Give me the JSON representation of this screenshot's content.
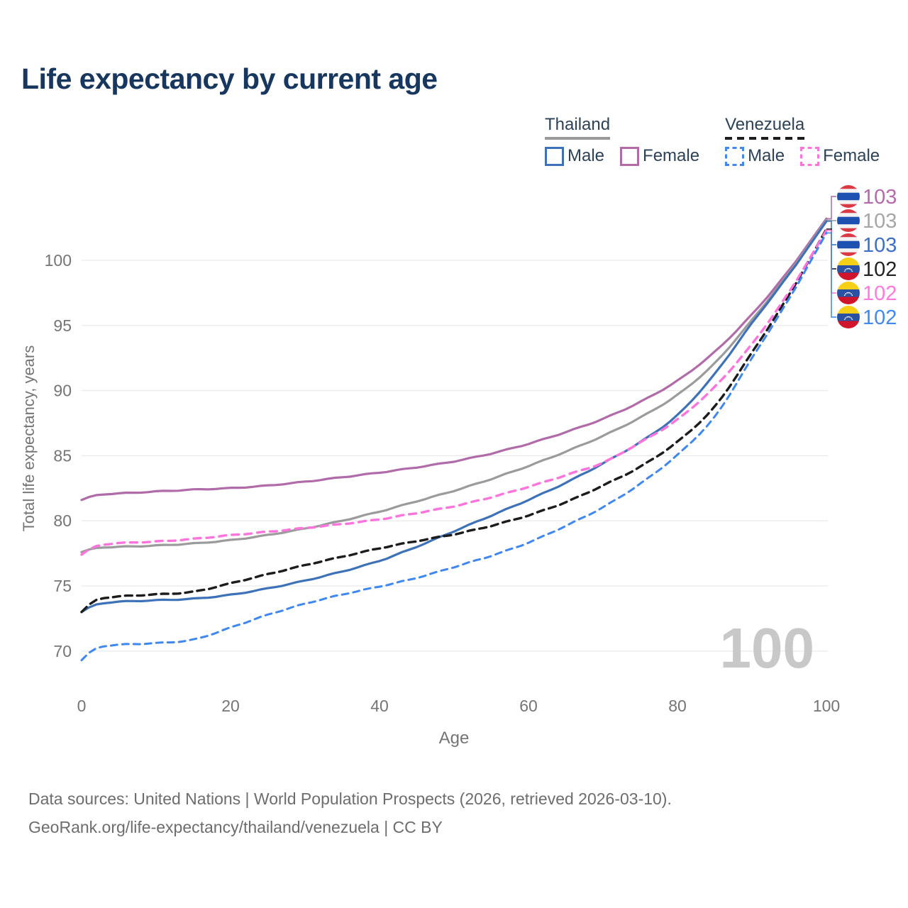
{
  "title": "Life expectancy by current age",
  "legend": {
    "groups": [
      {
        "name": "Thailand",
        "underline_style": "solid",
        "underline_color": "#9a9a9a",
        "items": [
          {
            "label": "Male",
            "color": "#3e72b8",
            "dashed": false
          },
          {
            "label": "Female",
            "color": "#b06ba8",
            "dashed": false
          }
        ]
      },
      {
        "name": "Venezuela",
        "underline_style": "dashed",
        "underline_color": "#1d1d1d",
        "items": [
          {
            "label": "Male",
            "color": "#3f87f2",
            "dashed": true
          },
          {
            "label": "Female",
            "color": "#ff74dc",
            "dashed": true
          }
        ]
      }
    ]
  },
  "watermark": "100",
  "footer": {
    "line1": "Data sources: United Nations | World Population Prospects (2026, retrieved 2026-03-10).",
    "line2": "GeoRank.org/life-expectancy/thailand/venezuela | CC BY"
  },
  "chart_data": {
    "type": "line",
    "title": "Life expectancy by current age",
    "xlabel": "Age",
    "ylabel": "Total life expectancy, years",
    "x_ticks": [
      0,
      20,
      40,
      60,
      80,
      100
    ],
    "y_ticks": [
      70,
      75,
      80,
      85,
      90,
      95,
      100
    ],
    "xlim": [
      0,
      100
    ],
    "ylim": [
      68.5,
      104
    ],
    "grid": "horizontal",
    "axis_color": "#757575",
    "grid_color": "#e9e9e9",
    "watermark_color": "#c8c8c8",
    "ages": [
      0,
      1,
      5,
      10,
      15,
      20,
      25,
      30,
      35,
      40,
      45,
      50,
      55,
      60,
      65,
      70,
      75,
      80,
      85,
      90,
      95,
      100
    ],
    "flag_colors": {
      "thailand": {
        "red": "#da3a44",
        "white": "#f2f2f2",
        "blue": "#1d50b0"
      },
      "venezuela": {
        "yellow": "#f6cf17",
        "blue": "#2b51a3",
        "red": "#cf142b",
        "star": "#ffffff"
      }
    },
    "series": [
      {
        "name": "Thailand Female",
        "country": "Thailand",
        "sex": "Female",
        "flag": "thailand",
        "color": "#b06ba8",
        "label_color": "#b569ae",
        "dash": null,
        "width": 3.2,
        "end_label": "103",
        "values": [
          81.6,
          82.0,
          82.1,
          82.25,
          82.4,
          82.5,
          82.7,
          83.0,
          83.35,
          83.7,
          84.1,
          84.55,
          85.15,
          85.9,
          86.8,
          87.8,
          89.1,
          90.7,
          92.9,
          95.8,
          99.2,
          103.2
        ]
      },
      {
        "name": "Thailand Both sexes",
        "country": "Thailand",
        "sex": "Both",
        "flag": "thailand",
        "color": "#9b9b9b",
        "label_color": "#a6a6a6",
        "dash": null,
        "width": 3.2,
        "end_label": "103",
        "values": [
          77.6,
          77.95,
          78.0,
          78.1,
          78.25,
          78.5,
          78.9,
          79.4,
          80.0,
          80.7,
          81.5,
          82.3,
          83.2,
          84.2,
          85.3,
          86.5,
          87.9,
          89.6,
          92.0,
          95.4,
          99.0,
          103.1
        ]
      },
      {
        "name": "Thailand Male",
        "country": "Thailand",
        "sex": "Male",
        "flag": "thailand",
        "color": "#3e72b8",
        "label_color": "#3d6fc6",
        "dash": null,
        "width": 3.2,
        "end_label": "103",
        "values": [
          73.0,
          73.6,
          73.8,
          73.9,
          74.0,
          74.3,
          74.8,
          75.4,
          76.1,
          76.9,
          78.0,
          79.2,
          80.4,
          81.6,
          82.9,
          84.4,
          86.0,
          88.0,
          91.2,
          95.2,
          98.9,
          103.0
        ]
      },
      {
        "name": "Venezuela Both sexes",
        "country": "Venezuela",
        "sex": "Both",
        "flag": "venezuela",
        "color": "#1c1c1c",
        "label_color": "#222222",
        "dash": "10 7",
        "width": 3.4,
        "end_label": "102",
        "values": [
          73.0,
          74.0,
          74.2,
          74.35,
          74.5,
          75.2,
          75.9,
          76.6,
          77.25,
          77.9,
          78.45,
          78.95,
          79.6,
          80.4,
          81.4,
          82.7,
          84.1,
          86.0,
          88.6,
          92.9,
          97.3,
          102.4
        ]
      },
      {
        "name": "Venezuela Female",
        "country": "Venezuela",
        "sex": "Female",
        "flag": "venezuela",
        "color": "#ff74dc",
        "label_color": "#ff7ae0",
        "dash": "10 8",
        "width": 3.4,
        "end_label": "102",
        "values": [
          77.4,
          78.1,
          78.3,
          78.4,
          78.6,
          78.9,
          79.15,
          79.45,
          79.75,
          80.1,
          80.6,
          81.1,
          81.8,
          82.6,
          83.5,
          84.4,
          86.0,
          87.7,
          90.2,
          93.5,
          97.5,
          102.3
        ]
      },
      {
        "name": "Venezuela Male",
        "country": "Venezuela",
        "sex": "Male",
        "flag": "venezuela",
        "color": "#3f87f2",
        "label_color": "#4189f2",
        "dash": "9 7",
        "width": 3.0,
        "end_label": "102",
        "values": [
          69.3,
          70.3,
          70.5,
          70.6,
          70.8,
          71.8,
          72.8,
          73.65,
          74.35,
          74.95,
          75.6,
          76.45,
          77.3,
          78.3,
          79.6,
          81.0,
          82.8,
          85.0,
          87.8,
          92.5,
          97.0,
          102.1
        ]
      }
    ],
    "end_label_rows_y": [
      277,
      311,
      345,
      379,
      413,
      447
    ]
  }
}
